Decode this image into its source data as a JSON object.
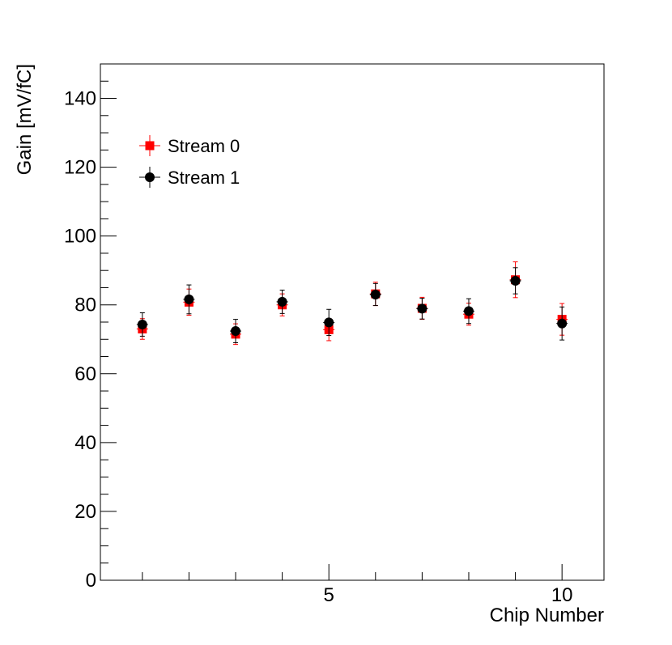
{
  "chart_data": {
    "type": "scatter",
    "xlabel": "Chip Number",
    "ylabel": "Gain [mV/fC]",
    "xlim": [
      0.1,
      10.9
    ],
    "ylim": [
      0,
      150
    ],
    "x_ticks": [
      5,
      10
    ],
    "y_ticks": [
      0,
      20,
      40,
      60,
      80,
      100,
      120,
      140
    ],
    "grid": false,
    "legend_position": "top-left",
    "series": [
      {
        "name": "Stream 0",
        "marker": "square",
        "color": "#ff0000",
        "x": [
          1,
          2,
          3,
          4,
          5,
          6,
          7,
          8,
          9,
          10
        ],
        "y": [
          73.0,
          80.8,
          71.5,
          80.0,
          72.8,
          83.2,
          79.0,
          77.3,
          87.3,
          75.8
        ],
        "err": [
          3.0,
          3.8,
          3.0,
          3.2,
          3.2,
          3.4,
          3.2,
          3.2,
          5.2,
          4.6
        ]
      },
      {
        "name": "Stream 1",
        "marker": "circle",
        "color": "#000000",
        "x": [
          1,
          2,
          3,
          4,
          5,
          6,
          7,
          8,
          9,
          10
        ],
        "y": [
          74.3,
          81.6,
          72.4,
          80.9,
          74.9,
          83.0,
          78.9,
          78.2,
          87.0,
          74.6
        ],
        "err": [
          3.4,
          4.2,
          3.4,
          3.4,
          3.8,
          3.2,
          3.0,
          3.6,
          3.8,
          4.8
        ]
      }
    ]
  }
}
